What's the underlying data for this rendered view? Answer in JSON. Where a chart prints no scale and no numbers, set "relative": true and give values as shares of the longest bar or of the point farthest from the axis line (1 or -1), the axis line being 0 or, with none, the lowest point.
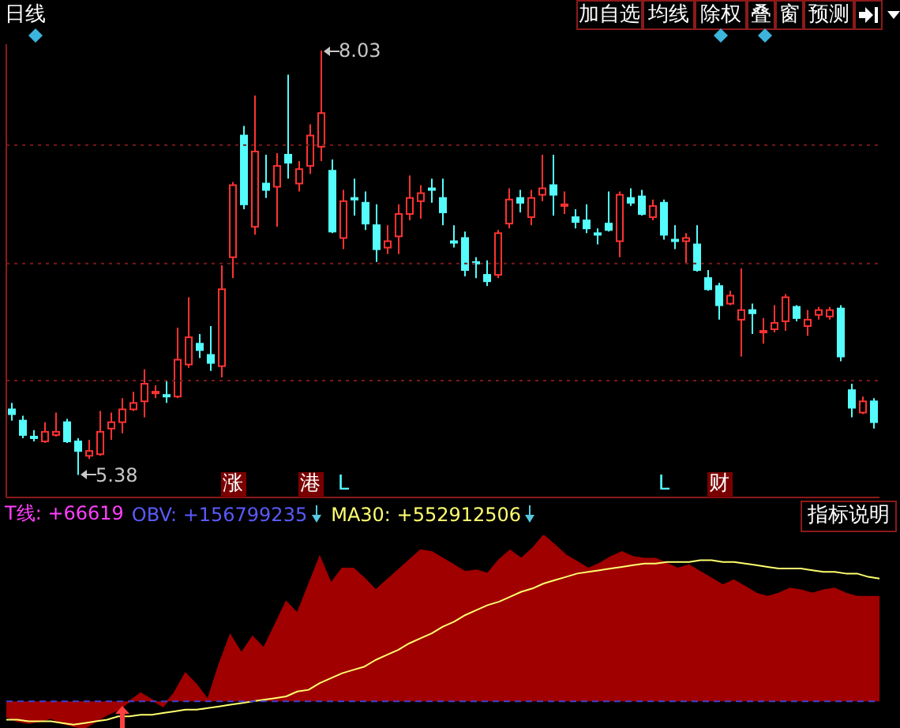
{
  "chart_data": [
    {
      "type": "candlestick",
      "title": "日线",
      "categories": [
        null,
        null,
        null,
        null,
        null,
        null,
        null,
        null,
        null,
        null,
        null,
        null,
        null,
        null,
        null,
        null,
        null,
        null,
        null,
        null,
        null,
        null,
        null,
        null,
        null,
        null,
        null,
        null,
        null,
        null,
        null,
        null,
        null,
        null,
        null,
        null,
        null,
        null,
        null,
        null,
        null,
        null,
        null,
        null,
        null,
        null,
        null,
        null,
        null,
        null,
        null,
        null,
        null,
        null,
        null,
        null,
        null,
        null,
        null,
        null,
        null,
        null,
        null,
        null,
        null,
        null,
        null,
        null,
        null,
        null,
        null,
        null,
        null,
        null,
        null,
        null,
        null,
        null,
        null
      ],
      "ohlc": [
        [
          5.79,
          5.83,
          5.72,
          5.76
        ],
        [
          5.72,
          5.75,
          5.61,
          5.63
        ],
        [
          5.62,
          5.66,
          5.59,
          5.61
        ],
        [
          5.59,
          5.71,
          5.58,
          5.65
        ],
        [
          5.63,
          5.77,
          5.62,
          5.65
        ],
        [
          5.71,
          5.73,
          5.58,
          5.59
        ],
        [
          5.59,
          5.61,
          5.38,
          5.53
        ],
        [
          5.5,
          5.6,
          5.48,
          5.53
        ],
        [
          5.51,
          5.78,
          5.5,
          5.65
        ],
        [
          5.67,
          5.77,
          5.6,
          5.71
        ],
        [
          5.71,
          5.86,
          5.64,
          5.79
        ],
        [
          5.79,
          5.9,
          5.78,
          5.83
        ],
        [
          5.84,
          6.04,
          5.74,
          5.95
        ],
        [
          5.89,
          5.94,
          5.86,
          5.9
        ],
        [
          5.88,
          5.97,
          5.83,
          5.87
        ],
        [
          5.87,
          6.3,
          5.86,
          6.1
        ],
        [
          6.07,
          6.49,
          6.05,
          6.24
        ],
        [
          6.2,
          6.26,
          6.11,
          6.16
        ],
        [
          6.13,
          6.31,
          6.03,
          6.08
        ],
        [
          6.06,
          6.69,
          5.99,
          6.54
        ],
        [
          6.74,
          7.21,
          6.61,
          7.19
        ],
        [
          7.5,
          7.56,
          7.04,
          7.07
        ],
        [
          6.93,
          7.75,
          6.88,
          7.4
        ],
        [
          7.2,
          7.38,
          7.11,
          7.16
        ],
        [
          7.18,
          7.39,
          6.93,
          7.31
        ],
        [
          7.38,
          7.88,
          7.23,
          7.33
        ],
        [
          7.2,
          7.34,
          7.15,
          7.29
        ],
        [
          7.31,
          7.57,
          7.26,
          7.5
        ],
        [
          7.43,
          8.03,
          7.34,
          7.64
        ],
        [
          7.28,
          7.35,
          6.89,
          6.9
        ],
        [
          6.86,
          7.16,
          6.79,
          7.09
        ],
        [
          7.11,
          7.23,
          7.0,
          7.1
        ],
        [
          7.08,
          7.15,
          6.91,
          6.95
        ],
        [
          6.94,
          7.07,
          6.71,
          6.79
        ],
        [
          6.8,
          6.94,
          6.76,
          6.84
        ],
        [
          6.87,
          7.07,
          6.76,
          7.01
        ],
        [
          7.01,
          7.25,
          6.97,
          7.11
        ],
        [
          7.09,
          7.19,
          6.98,
          7.14
        ],
        [
          7.17,
          7.23,
          7.08,
          7.16
        ],
        [
          7.11,
          7.23,
          6.94,
          7.02
        ],
        [
          6.84,
          6.94,
          6.8,
          6.83
        ],
        [
          6.86,
          6.9,
          6.62,
          6.66
        ],
        [
          6.71,
          6.74,
          6.61,
          6.7
        ],
        [
          6.63,
          6.72,
          6.56,
          6.59
        ],
        [
          6.63,
          6.91,
          6.61,
          6.89
        ],
        [
          6.95,
          7.17,
          6.92,
          7.1
        ],
        [
          7.11,
          7.16,
          7.02,
          7.08
        ],
        [
          6.99,
          7.16,
          6.94,
          7.11
        ],
        [
          7.13,
          7.38,
          7.09,
          7.17
        ],
        [
          7.19,
          7.38,
          7.0,
          7.13
        ],
        [
          7.06,
          7.15,
          7.01,
          7.07
        ],
        [
          6.99,
          7.04,
          6.92,
          6.96
        ],
        [
          6.97,
          7.07,
          6.89,
          6.92
        ],
        [
          6.89,
          6.92,
          6.82,
          6.88
        ],
        [
          6.95,
          7.15,
          6.9,
          6.91
        ],
        [
          6.84,
          7.15,
          6.74,
          7.13
        ],
        [
          7.11,
          7.17,
          7.06,
          7.08
        ],
        [
          7.12,
          7.16,
          7.0,
          7.01
        ],
        [
          6.99,
          7.1,
          6.97,
          7.06
        ],
        [
          7.08,
          7.1,
          6.85,
          6.88
        ],
        [
          6.85,
          6.94,
          6.79,
          6.84
        ],
        [
          6.84,
          6.89,
          6.7,
          6.86
        ],
        [
          6.82,
          6.94,
          6.65,
          6.66
        ],
        [
          6.61,
          6.66,
          6.53,
          6.54
        ],
        [
          6.56,
          6.58,
          6.35,
          6.44
        ],
        [
          6.45,
          6.53,
          6.44,
          6.5
        ],
        [
          6.35,
          6.67,
          6.12,
          6.41
        ],
        [
          6.41,
          6.45,
          6.26,
          6.39
        ],
        [
          6.27,
          6.36,
          6.2,
          6.28
        ],
        [
          6.29,
          6.44,
          6.27,
          6.33
        ],
        [
          6.34,
          6.51,
          6.28,
          6.49
        ],
        [
          6.43,
          6.44,
          6.34,
          6.36
        ],
        [
          6.31,
          6.41,
          6.25,
          6.35
        ],
        [
          6.38,
          6.43,
          6.35,
          6.41
        ],
        [
          6.37,
          6.43,
          6.35,
          6.41
        ],
        [
          6.42,
          6.44,
          6.09,
          6.12
        ],
        [
          5.91,
          5.95,
          5.74,
          5.8
        ],
        [
          5.77,
          5.87,
          5.76,
          5.84
        ],
        [
          5.84,
          5.86,
          5.67,
          5.71
        ]
      ],
      "colors": [
        "#54fcfc",
        "#54fcfc",
        "#54fcfc",
        "#ff3232",
        "#ff3232",
        "#54fcfc",
        "#54fcfc",
        "#ff3232",
        "#ff3232",
        "#ff3232",
        "#ff3232",
        "#ff3232",
        "#ff3232",
        "#ff3232",
        "#54fcfc",
        "#ff3232",
        "#ff3232",
        "#54fcfc",
        "#54fcfc",
        "#ff3232",
        "#ff3232",
        "#54fcfc",
        "#ff3232",
        "#54fcfc",
        "#ff3232",
        "#54fcfc",
        "#ff3232",
        "#ff3232",
        "#ff3232",
        "#54fcfc",
        "#ff3232",
        "#54fcfc",
        "#54fcfc",
        "#54fcfc",
        "#ff3232",
        "#ff3232",
        "#ff3232",
        "#ff3232",
        "#54fcfc",
        "#54fcfc",
        "#54fcfc",
        "#54fcfc",
        "#54fcfc",
        "#54fcfc",
        "#ff3232",
        "#ff3232",
        "#54fcfc",
        "#ff3232",
        "#ff3232",
        "#54fcfc",
        "#ff3232",
        "#54fcfc",
        "#54fcfc",
        "#54fcfc",
        "#54fcfc",
        "#ff3232",
        "#54fcfc",
        "#54fcfc",
        "#ff3232",
        "#54fcfc",
        "#54fcfc",
        "#ff3232",
        "#54fcfc",
        "#54fcfc",
        "#54fcfc",
        "#ff3232",
        "#ff3232",
        "#54fcfc",
        "#ff3232",
        "#ff3232",
        "#ff3232",
        "#54fcfc",
        "#ff3232",
        "#ff3232",
        "#ff3232",
        "#54fcfc",
        "#54fcfc",
        "#ff3232",
        "#54fcfc"
      ],
      "ylim": [
        5.24,
        8.07
      ],
      "yticks": [
        {
          "value": 5.97,
          "label": null
        },
        {
          "value": 6.7,
          "label": null
        },
        {
          "value": 7.44,
          "label": null
        }
      ],
      "grid": "y",
      "annotations": [
        "8.03",
        "5.38",
        "涨",
        "港",
        "L",
        "L",
        "财",
        "加自选",
        "均线",
        "除权",
        "叠",
        "窗",
        "预测"
      ]
    },
    {
      "type": "area",
      "relative": true,
      "categories": [
        null,
        null,
        null,
        null,
        null,
        null,
        null,
        null,
        null,
        null,
        null,
        null,
        null,
        null,
        null,
        null,
        null,
        null,
        null,
        null,
        null,
        null,
        null,
        null,
        null,
        null,
        null,
        null,
        null,
        null,
        null,
        null,
        null,
        null,
        null,
        null,
        null,
        null,
        null,
        null,
        null,
        null,
        null,
        null,
        null,
        null,
        null,
        null,
        null,
        null,
        null,
        null,
        null,
        null,
        null,
        null,
        null,
        null,
        null,
        null,
        null,
        null,
        null,
        null,
        null,
        null,
        null,
        null,
        null,
        null,
        null,
        null,
        null,
        null,
        null,
        null,
        null,
        null,
        null
      ],
      "series": [
        {
          "name": "OBV: +156799235",
          "color": "#a00000",
          "values": [
            -0.09,
            -0.12,
            -0.13,
            -0.12,
            -0.1,
            -0.13,
            -0.15,
            -0.16,
            -0.12,
            -0.08,
            -0.05,
            0,
            0.05,
            0.01,
            -0.03,
            0.05,
            0.17,
            0.1,
            0.01,
            0.22,
            0.4,
            0.29,
            0.39,
            0.32,
            0.46,
            0.6,
            0.53,
            0.7,
            0.87,
            0.71,
            0.8,
            0.8,
            0.74,
            0.67,
            0.73,
            0.79,
            0.85,
            0.91,
            0.9,
            0.86,
            0.82,
            0.78,
            0.79,
            0.77,
            0.85,
            0.91,
            0.86,
            0.92,
            1,
            0.94,
            0.88,
            0.84,
            0.8,
            0.83,
            0.87,
            0.9,
            0.87,
            0.86,
            0.86,
            0.83,
            0.8,
            0.82,
            0.78,
            0.74,
            0.7,
            0.73,
            0.69,
            0.65,
            0.63,
            0.65,
            0.68,
            0.67,
            0.65,
            0.67,
            0.68,
            0.65,
            0.63,
            0.63,
            0.63
          ]
        },
        {
          "name": "MA30: +552912506",
          "type": "line",
          "color": "#ffff70",
          "values": [
            -0.11,
            -0.11,
            -0.12,
            -0.12,
            -0.12,
            -0.13,
            -0.14,
            -0.13,
            -0.12,
            -0.11,
            -0.09,
            -0.09,
            -0.08,
            -0.08,
            -0.07,
            -0.06,
            -0.05,
            -0.05,
            -0.04,
            -0.03,
            -0.02,
            -0.01,
            0,
            0.01,
            0.02,
            0.03,
            0.06,
            0.07,
            0.11,
            0.14,
            0.17,
            0.19,
            0.21,
            0.25,
            0.28,
            0.31,
            0.35,
            0.38,
            0.41,
            0.45,
            0.48,
            0.52,
            0.55,
            0.58,
            0.6,
            0.63,
            0.66,
            0.68,
            0.71,
            0.73,
            0.75,
            0.77,
            0.78,
            0.79,
            0.8,
            0.81,
            0.82,
            0.83,
            0.83,
            0.84,
            0.84,
            0.84,
            0.85,
            0.85,
            0.84,
            0.84,
            0.83,
            0.82,
            0.81,
            0.8,
            0.8,
            0.8,
            0.79,
            0.78,
            0.78,
            0.77,
            0.77,
            0.75,
            0.74
          ]
        }
      ],
      "ref_lines": [
        {
          "axis": "y",
          "value": 0,
          "color": "#4040d0",
          "line_style": "dashed"
        }
      ],
      "legend": "top left",
      "annotations": [
        "T线: +66619",
        "指标说明"
      ]
    }
  ]
}
